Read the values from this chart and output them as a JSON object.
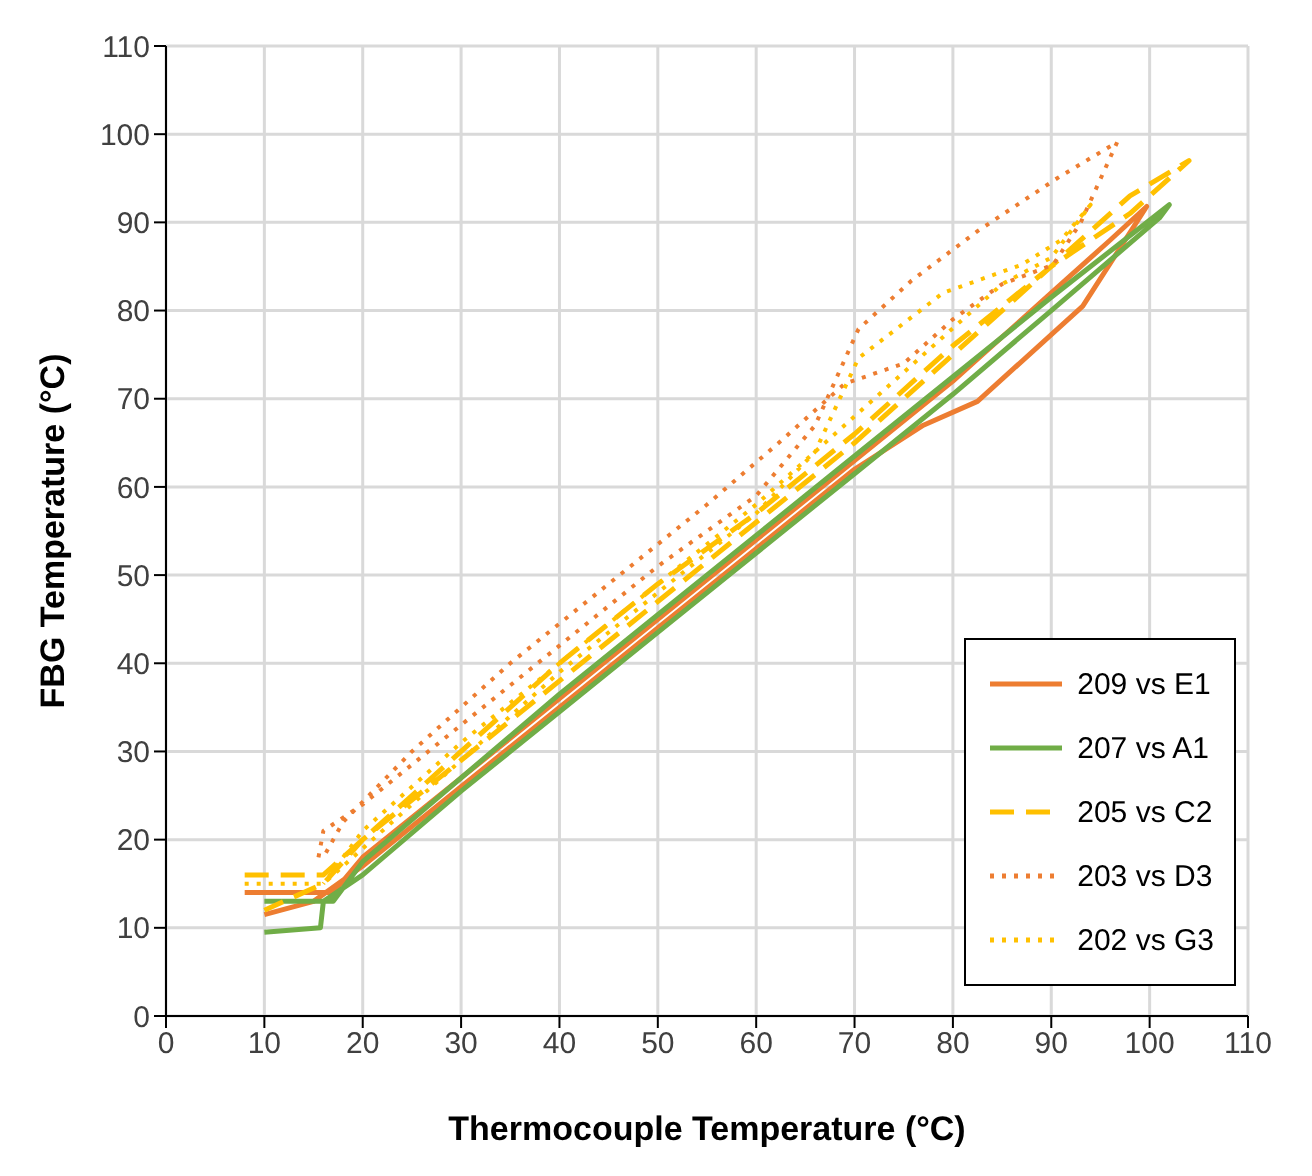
{
  "chart_data": {
    "type": "line",
    "xlabel": "Thermocouple  Temperature (°C)",
    "ylabel": "FBG Temperature (°C)",
    "xlim": [
      0,
      110
    ],
    "ylim": [
      0,
      110
    ],
    "xticks": [
      0,
      10,
      20,
      30,
      40,
      50,
      60,
      70,
      80,
      90,
      100,
      110
    ],
    "yticks": [
      0,
      10,
      20,
      30,
      40,
      50,
      60,
      70,
      80,
      90,
      100,
      110
    ],
    "grid": true,
    "legend": "bottom right",
    "marker": "none",
    "series": [
      {
        "name": "209 vs E1",
        "color": "#ed7d31",
        "line_style": "solid",
        "x": [
          8,
          17,
          20,
          30,
          40,
          50,
          60,
          70,
          80,
          90,
          96,
          99.7,
          93.2,
          82.5,
          77,
          70,
          60,
          50,
          40,
          30,
          20,
          15,
          10
        ],
        "values": [
          14,
          14,
          18,
          27,
          36,
          45,
          54,
          63,
          72,
          82,
          88,
          91.8,
          80.5,
          69.7,
          67,
          62,
          53,
          44,
          35,
          26,
          17,
          13,
          11.5
        ]
      },
      {
        "name": "207 vs A1",
        "color": "#70ad47",
        "line_style": "solid",
        "x": [
          10,
          17,
          20,
          30,
          40,
          50,
          60,
          70,
          80,
          90,
          102,
          101,
          90,
          80,
          70,
          60,
          50,
          40,
          30,
          20,
          16,
          15.7,
          10
        ],
        "values": [
          13,
          13,
          17.5,
          27,
          36.5,
          45.5,
          54.5,
          63.5,
          72.5,
          81.5,
          92,
          90.5,
          80,
          70.5,
          61.5,
          52.5,
          43.5,
          34.5,
          25.5,
          16,
          13,
          10,
          9.5
        ]
      },
      {
        "name": "205 vs C2",
        "color": "#ffc000",
        "line_style": "dashed",
        "x": [
          8,
          16,
          20,
          30,
          40,
          50,
          60,
          70,
          80,
          90,
          98,
          104,
          98,
          90,
          80,
          70,
          60,
          50,
          40,
          30,
          20,
          16,
          10
        ],
        "values": [
          16,
          16,
          20,
          30,
          40,
          49,
          57,
          66,
          76,
          85,
          91,
          97,
          93,
          85,
          75,
          65,
          56,
          47,
          38,
          29,
          20,
          15,
          12
        ]
      },
      {
        "name": "203 vs D3",
        "color": "#ed7d31",
        "line_style": "dotted",
        "x": [
          15.5,
          16,
          20,
          30,
          40,
          50,
          60,
          66,
          70.4,
          75.8,
          82.5,
          90.6,
          96.7,
          93,
          90.2,
          85,
          80,
          75,
          69,
          62.3,
          55,
          45,
          35,
          25,
          18,
          16
        ],
        "values": [
          18,
          21,
          24,
          33,
          42,
          51,
          59,
          67,
          77.9,
          83.4,
          89,
          95,
          99.1,
          90,
          85.2,
          83,
          79,
          74,
          71.7,
          65,
          58,
          49,
          40,
          30,
          22,
          18
        ]
      },
      {
        "name": "202 vs G3",
        "color": "#ffc000",
        "line_style": "dotted",
        "x": [
          8,
          16,
          20,
          30,
          40,
          50,
          60,
          66,
          70.4,
          79,
          87,
          91,
          94,
          90,
          85,
          80,
          72,
          60,
          50,
          40,
          30,
          20,
          16
        ],
        "values": [
          15,
          15,
          19,
          29,
          39,
          48,
          57,
          64,
          74.6,
          82,
          85.2,
          88,
          92,
          86,
          83,
          78,
          70,
          58,
          49,
          40,
          31,
          21,
          15
        ]
      }
    ]
  }
}
